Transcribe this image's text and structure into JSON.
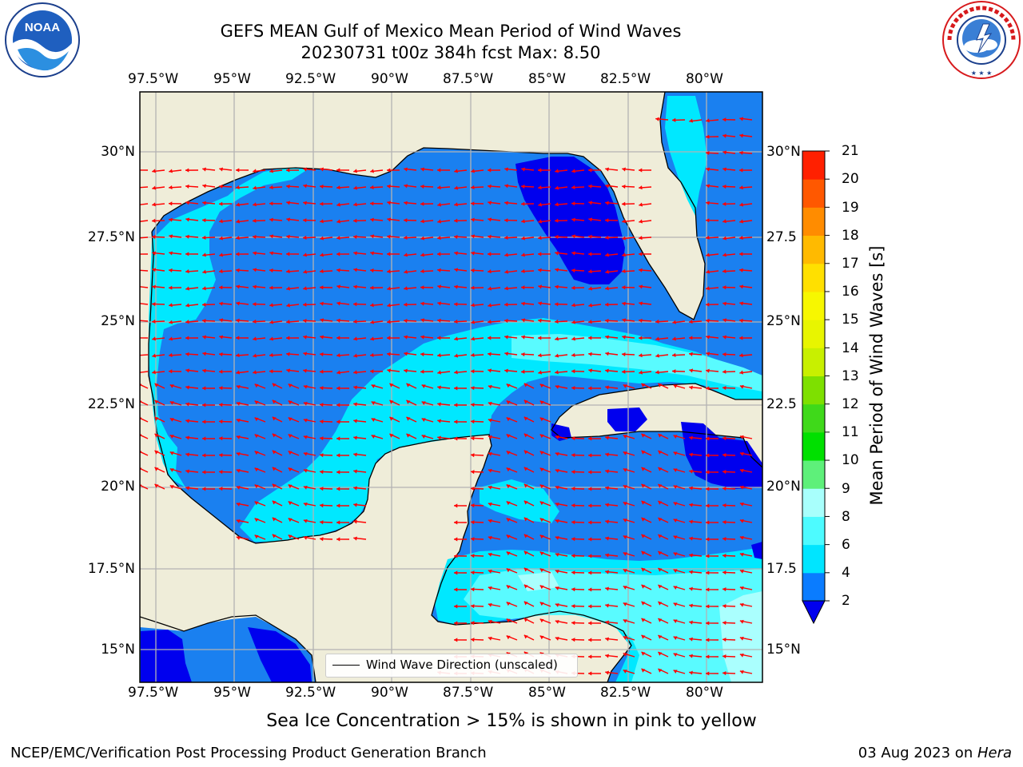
{
  "title": {
    "line1": "GEFS MEAN Gulf of Mexico Mean Period of Wind Waves",
    "line2": "20230731 t00z 384h fcst   Max: 8.50"
  },
  "logos": {
    "left": {
      "icon": "noaa-logo",
      "text": "NOAA"
    },
    "right": {
      "icon": "nws-logo"
    }
  },
  "map": {
    "lon_labels": [
      "97.5°W",
      "95°W",
      "92.5°W",
      "90°W",
      "87.5°W",
      "85°W",
      "82.5°W",
      "80°W"
    ],
    "lat_labels_left": [
      "30°N",
      "27.5°N",
      "25°N",
      "22.5°N",
      "20°N",
      "17.5°N",
      "15°N"
    ],
    "lat_labels_right": [
      "30°N",
      "27.5",
      "25°N",
      "22.5",
      "20°N",
      "17.5",
      "15°N"
    ],
    "extent": {
      "lon": [
        -98.0,
        -79.0
      ],
      "lat": [
        14.0,
        32.0
      ]
    },
    "land_color": "#efedd9",
    "arrow_color": "#ff0000",
    "gridline_color": "#b3b3b3"
  },
  "legend": {
    "label": "Wind Wave Direction (unscaled)"
  },
  "colorbar": {
    "label": "Mean Period of Wind Waves [s]",
    "ticks": [
      "2",
      "4",
      "6",
      "8",
      "9",
      "10",
      "11",
      "12",
      "13",
      "14",
      "15",
      "16",
      "17",
      "18",
      "19",
      "20",
      "21"
    ],
    "colors": [
      "#0a7cff",
      "#00e5ff",
      "#4dfbff",
      "#a8fffc",
      "#5ef07a",
      "#00e000",
      "#3fd91a",
      "#7ee000",
      "#c8f000",
      "#e8f500",
      "#f7f700",
      "#ffe000",
      "#ffba00",
      "#ff8c00",
      "#ff5800",
      "#ff2000"
    ],
    "under_color": "#0000ee"
  },
  "period_colors": {
    "band_2_4": "#1a80f0",
    "band_4_6": "#00e8ff",
    "band_6_8": "#59fbff",
    "band_8_9": "#aafffe",
    "below_2": "#0000ee"
  },
  "notes": {
    "ice": "Sea Ice Concentration > 15% is shown in pink to yellow"
  },
  "footer": {
    "left": "NCEP/EMC/Verification Post Processing Product Generation Branch",
    "date": "03 Aug 2023 on ",
    "machine": "Hera"
  }
}
